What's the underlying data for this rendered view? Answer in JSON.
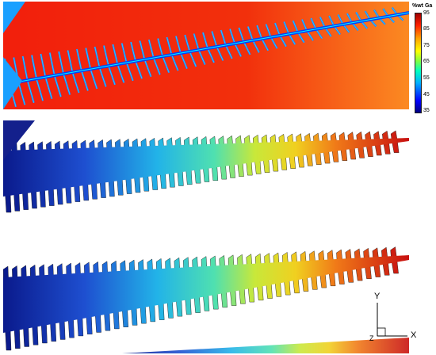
{
  "colorbar": {
    "title": "%wt Ga",
    "labels": [
      "95",
      "85",
      "75",
      "65",
      "55",
      "45",
      "35"
    ]
  },
  "axes": {
    "y_label": "Y",
    "x_label": "X",
    "z_label": "Z"
  }
}
